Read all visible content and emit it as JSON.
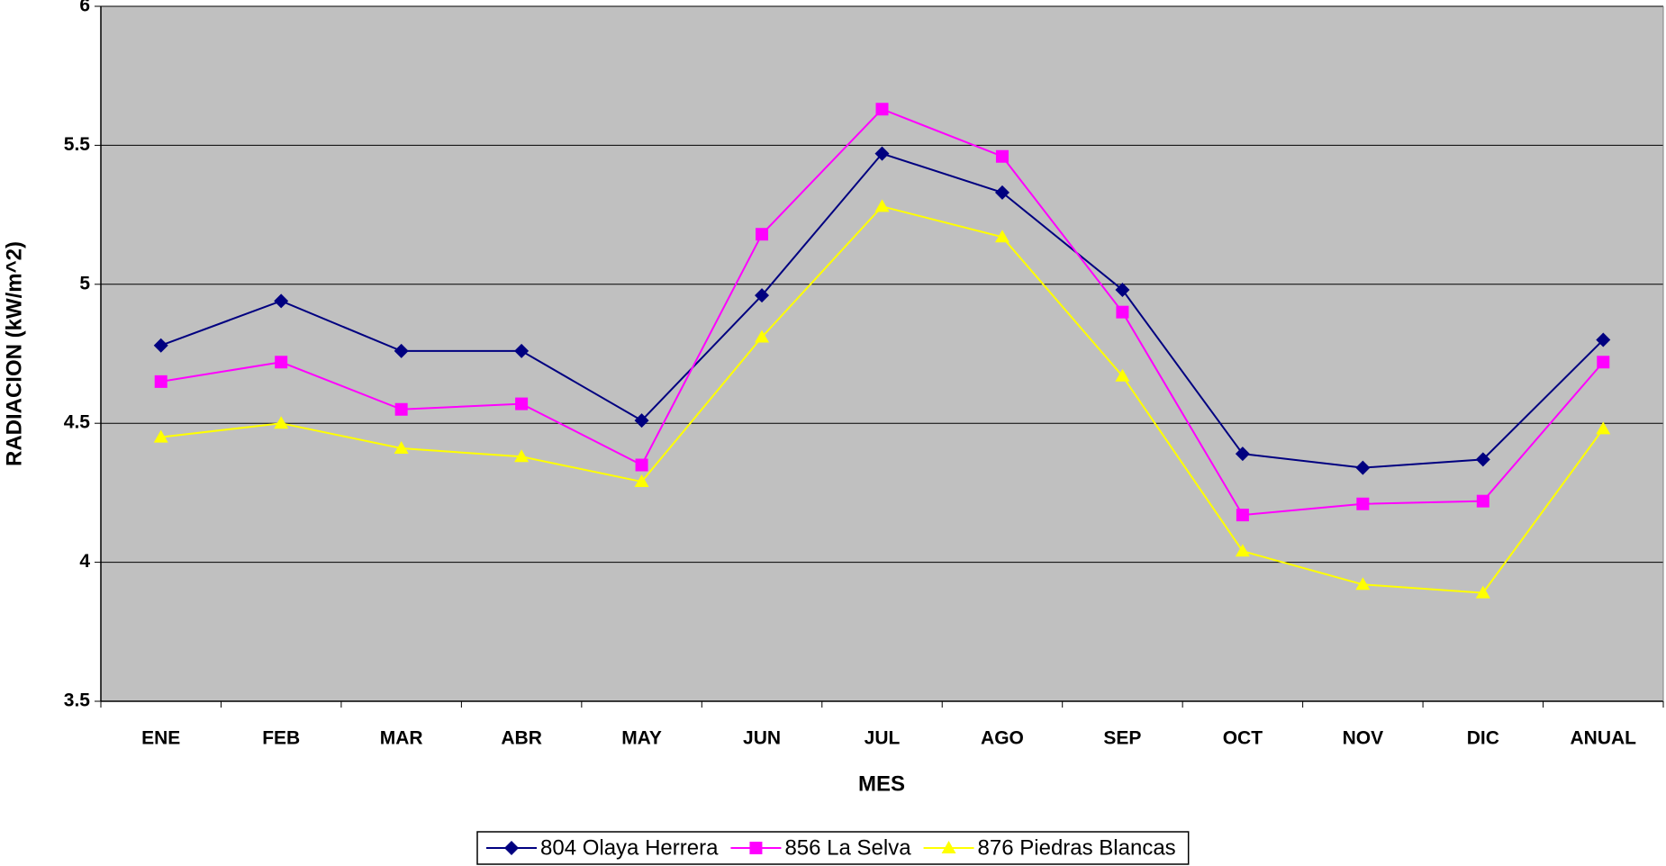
{
  "chart_data": {
    "type": "line",
    "x_label": "MES",
    "y_label": "RADIACION (kW/m^2)",
    "categories": [
      "ENE",
      "FEB",
      "MAR",
      "ABR",
      "MAY",
      "JUN",
      "JUL",
      "AGO",
      "SEP",
      "OCT",
      "NOV",
      "DIC",
      "ANUAL"
    ],
    "series": [
      {
        "name": "804 Olaya Herrera",
        "color": "#000080",
        "marker": "diamond",
        "values": [
          4.78,
          4.94,
          4.76,
          4.76,
          4.51,
          4.96,
          5.47,
          5.33,
          4.98,
          4.39,
          4.34,
          4.37,
          4.8
        ]
      },
      {
        "name": "856 La Selva",
        "color": "#ff00ff",
        "marker": "square",
        "values": [
          4.65,
          4.72,
          4.55,
          4.57,
          4.35,
          5.18,
          5.63,
          5.46,
          4.9,
          4.17,
          4.21,
          4.22,
          4.72
        ]
      },
      {
        "name": "876 Piedras Blancas",
        "color": "#ffff00",
        "marker": "triangle",
        "values": [
          4.45,
          4.5,
          4.41,
          4.38,
          4.29,
          4.81,
          5.28,
          5.17,
          4.67,
          4.04,
          3.92,
          3.89,
          4.48
        ]
      }
    ],
    "ylim": [
      3.5,
      6
    ],
    "yticks": [
      3.5,
      4,
      4.5,
      5,
      5.5,
      6
    ],
    "grid": true,
    "legend": "bottom",
    "plot_background": "#c0c0c0"
  }
}
